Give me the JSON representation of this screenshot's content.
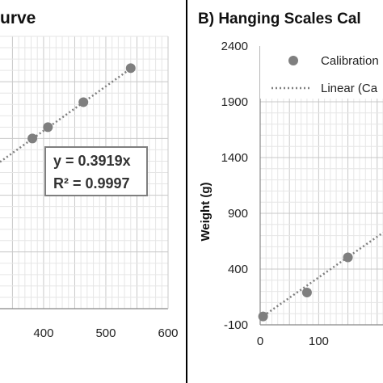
{
  "chart_data": [
    {
      "panel": "A",
      "type": "scatter",
      "title_visible": "urve",
      "x_ticks": [
        "400",
        "500",
        "600"
      ],
      "xlim": [
        330,
        600
      ],
      "ylim": [
        0,
        240
      ],
      "points": [
        {
          "x": 382,
          "y": 150
        },
        {
          "x": 407,
          "y": 160
        },
        {
          "x": 464,
          "y": 182
        },
        {
          "x": 540,
          "y": 212
        }
      ],
      "trendline": {
        "slope": 0.3919,
        "intercept": 0
      },
      "equation_lines": [
        "y = 0.3919x",
        "R² = 0.9997"
      ],
      "grid": true
    },
    {
      "panel": "B",
      "type": "scatter",
      "title": "B)  Hanging Scales Cal",
      "ylabel": "Weight (g)",
      "y_ticks": [
        "-100",
        "400",
        "900",
        "1400",
        "1900",
        "2400"
      ],
      "x_ticks": [
        "0",
        "100"
      ],
      "xlim": [
        0,
        210
      ],
      "ylim": [
        -100,
        2400
      ],
      "points": [
        {
          "x": 5,
          "y": -25
        },
        {
          "x": 80,
          "y": 190
        },
        {
          "x": 150,
          "y": 505
        }
      ],
      "trendline": {
        "slope": 3.65,
        "intercept": -40
      },
      "legend": [
        "Calibration",
        "Linear (Ca"
      ],
      "legend_position": "top-right",
      "grid": true
    }
  ],
  "colors": {
    "marker": "#7f7f7f",
    "trendline": "#7f7f7f",
    "grid": "#d9d9d9",
    "axis": "#888888",
    "divider": "#000000"
  }
}
